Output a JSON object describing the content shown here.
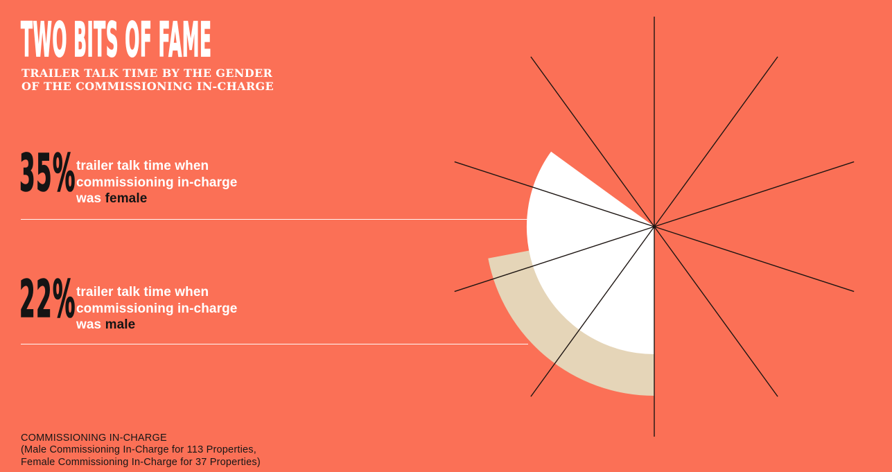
{
  "colors": {
    "background": "#FB7056",
    "white_wedge": "#FFFFFF",
    "beige_ring": "#E5D5B8",
    "ink": "#141414",
    "spoke": "#1D1512",
    "rule": "#FFFFFF"
  },
  "header": {
    "title": "TWO BITS OF FAME",
    "subtitle_line1": "TRAILER TALK TIME BY THE GENDER",
    "subtitle_line2": "OF THE COMMISSIONING IN-CHARGE"
  },
  "stats": [
    {
      "value": "35%",
      "line1": "trailer talk time when",
      "line2": "commissioning in-charge",
      "line3_prefix": "was ",
      "line3_highlight": "female"
    },
    {
      "value": "22%",
      "line1": "trailer talk time when",
      "line2": "commissioning in-charge",
      "line3_prefix": "was ",
      "line3_highlight": "male"
    }
  ],
  "footnote": {
    "line1": "COMMISSIONING IN-CHARGE",
    "line2": "(Male Commissioning In-Charge for 113 Properties,",
    "line3": "Female Commissioning In-Charge for 37 Properties)"
  },
  "chart_data": {
    "type": "pie",
    "title": "TWO BITS OF FAME",
    "subtitle": "TRAILER TALK TIME BY THE GENDER OF THE COMMISSIONING IN-CHARGE",
    "unit": "percent of trailer talk time",
    "series": [
      {
        "id": "wedge-female-35pct",
        "name": "trailer talk time when commissioning in-charge was female",
        "value_pct": 35,
        "style": "sector",
        "inner_radius": 0,
        "outer_radius": 184,
        "color": "#FFFFFF"
      },
      {
        "id": "ring-male-22pct",
        "name": "trailer talk time when commissioning in-charge was male",
        "value_pct": 22,
        "style": "ring",
        "inner_radius": 178,
        "outer_radius": 244,
        "color": "#E5D5B8"
      }
    ],
    "start_bearing_deg": 180,
    "sweep": "clockwise",
    "grid": {
      "spoke_count": 10,
      "spoke_step_deg": 36,
      "spoke_step_pct": 10,
      "spoke_length": 303,
      "spoke_color": "#1D1512",
      "spoke_width": 1.4
    },
    "center": {
      "x": 944,
      "y": 327
    },
    "center_dot_radius": 2.6,
    "legend_position": "none",
    "notes": [
      "Male Commissioning In-Charge for 113 Properties",
      "Female Commissioning In-Charge for 37 Properties"
    ]
  }
}
